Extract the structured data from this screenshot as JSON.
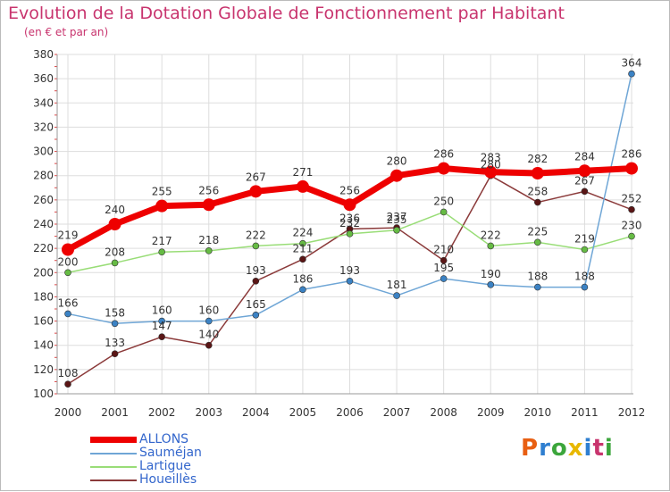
{
  "title": "Evolution de la Dotation Globale de Fonctionnement par Habitant",
  "subtitle": "(en € et par an)",
  "logo": {
    "text": "Proxiti",
    "colors": [
      "#e85f12",
      "#2f7fd0",
      "#3ca63c",
      "#e8b800",
      "#2f7fd0",
      "#c8346e",
      "#3ca63c"
    ]
  },
  "chart_data": {
    "type": "line",
    "x": [
      "2000",
      "2001",
      "2002",
      "2003",
      "2004",
      "2005",
      "2006",
      "2007",
      "2008",
      "2009",
      "2010",
      "2011",
      "2012"
    ],
    "ylim": [
      100,
      380
    ],
    "yticks": [
      "100",
      "120",
      "140",
      "160",
      "180",
      "200",
      "220",
      "240",
      "260",
      "280",
      "300",
      "320",
      "340",
      "360",
      "380"
    ],
    "grid": true,
    "legend": "bottom-left",
    "series": [
      {
        "name": "ALLONS",
        "color": "#ee0000",
        "width": 7,
        "marker": 7,
        "dot": "#ee0000",
        "values": [
          219,
          240,
          255,
          256,
          267,
          271,
          256,
          280,
          286,
          283,
          282,
          284,
          286
        ],
        "labels": [
          "219",
          "240",
          "255",
          "256",
          "267",
          "271",
          "256",
          "280",
          "286",
          "283",
          "282",
          "284",
          "286"
        ]
      },
      {
        "name": "Sauméjan",
        "color": "#6fa6d6",
        "width": 1.5,
        "marker": 3.5,
        "dot": "#3b82c4",
        "values": [
          166,
          158,
          160,
          160,
          165,
          186,
          193,
          181,
          195,
          190,
          188,
          188,
          364
        ],
        "labels": [
          "166",
          "158",
          "160",
          "160",
          "165",
          "186",
          "193",
          "181",
          "195",
          "190",
          "188",
          "188",
          "364"
        ]
      },
      {
        "name": "Lartigue",
        "color": "#99dd77",
        "width": 1.5,
        "marker": 3.5,
        "dot": "#66bb44",
        "values": [
          200,
          208,
          217,
          218,
          222,
          224,
          232,
          235,
          250,
          222,
          225,
          219,
          230
        ],
        "labels": [
          "200",
          "208",
          "217",
          "218",
          "222",
          "224",
          "232",
          "235",
          "250",
          "222",
          "225",
          "219",
          "230"
        ]
      },
      {
        "name": "Houeillès",
        "color": "#8b3a3a",
        "width": 1.5,
        "marker": 3.5,
        "dot": "#5a1515",
        "values": [
          108,
          133,
          147,
          140,
          193,
          211,
          236,
          237,
          210,
          280,
          258,
          267,
          252
        ],
        "labels": [
          "108",
          "133",
          "147",
          "140",
          "193",
          "211",
          "236",
          "237",
          "210",
          "280",
          "258",
          "267",
          "252"
        ]
      }
    ]
  }
}
